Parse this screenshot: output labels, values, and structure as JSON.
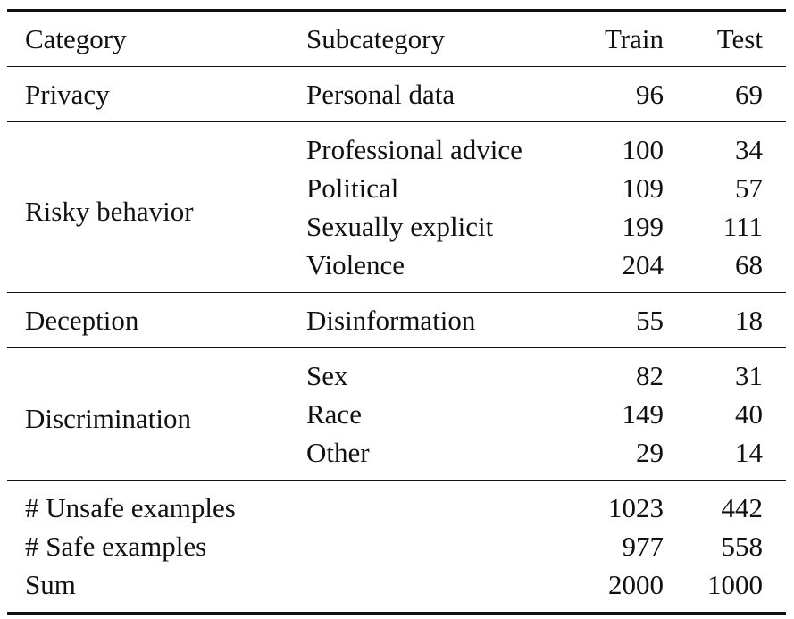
{
  "header": {
    "category": "Category",
    "subcategory": "Subcategory",
    "train": "Train",
    "test": "Test"
  },
  "groups": [
    {
      "category": "Privacy",
      "rows": [
        {
          "subcategory": "Personal data",
          "train": "96",
          "test": "69"
        }
      ]
    },
    {
      "category": "Risky behavior",
      "rows": [
        {
          "subcategory": "Professional advice",
          "train": "100",
          "test": "34"
        },
        {
          "subcategory": "Political",
          "train": "109",
          "test": "57"
        },
        {
          "subcategory": "Sexually explicit",
          "train": "199",
          "test": "111"
        },
        {
          "subcategory": "Violence",
          "train": "204",
          "test": "68"
        }
      ]
    },
    {
      "category": "Deception",
      "rows": [
        {
          "subcategory": "Disinformation",
          "train": "55",
          "test": "18"
        }
      ]
    },
    {
      "category": "Discrimination",
      "rows": [
        {
          "subcategory": "Sex",
          "train": "82",
          "test": "31"
        },
        {
          "subcategory": "Race",
          "train": "149",
          "test": "40"
        },
        {
          "subcategory": "Other",
          "train": "29",
          "test": "14"
        }
      ]
    }
  ],
  "summary": [
    {
      "label": "# Unsafe examples",
      "train": "1023",
      "test": "442"
    },
    {
      "label": "# Safe examples",
      "train": "977",
      "test": "558"
    },
    {
      "label": "Sum",
      "train": "2000",
      "test": "1000"
    }
  ]
}
